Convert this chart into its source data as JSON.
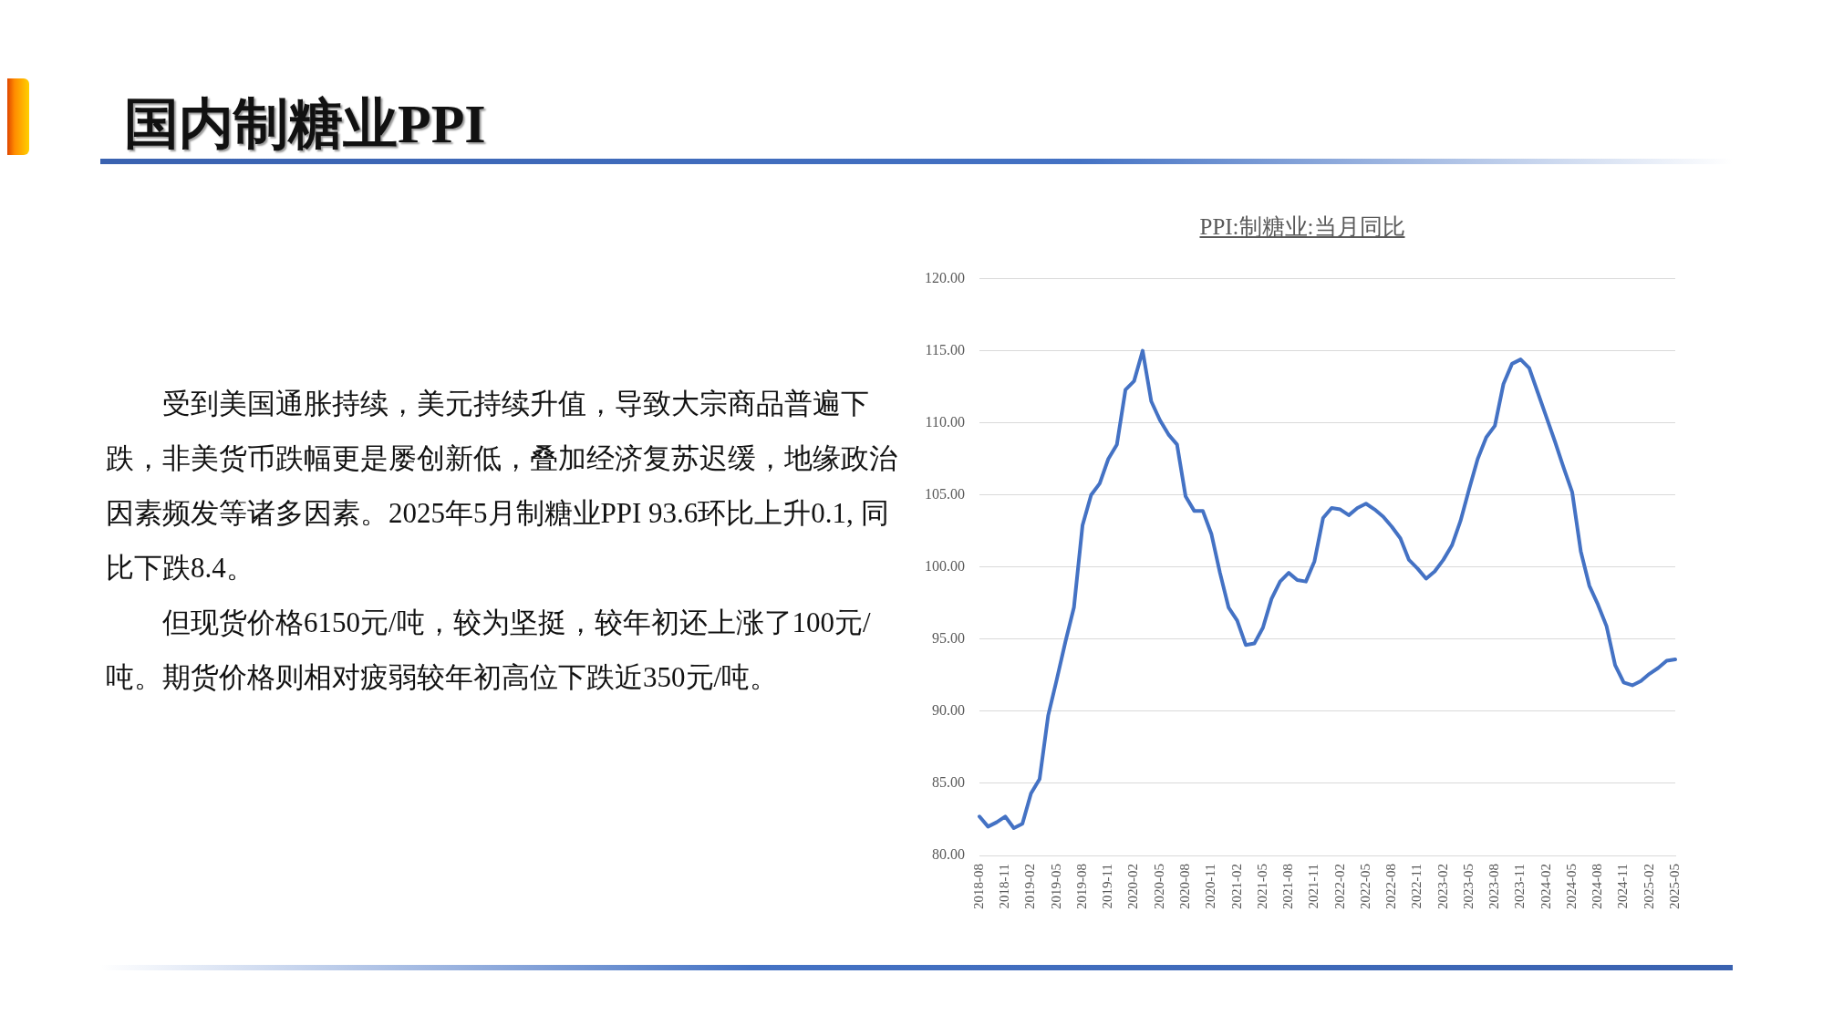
{
  "chart_data": {
    "type": "line",
    "title": "国内制糖业PPI",
    "subtitle": "PPI:制糖业:当月同比",
    "annotations": [
      "受到美国通胀持续，美元持续升值，导致大宗商品普遍下跌，非美货币跌幅更是屡创新低，叠加经济复苏迟缓，地缘政治因素频发等诸多因素。2025年5月制糖业PPI 93.6环比上升0.1, 同比下跌8.4。",
      "但现货价格6150元/吨，较为坚挺，较年初还上涨了100元/吨。期货价格则相对疲弱较年初高位下跌近350元/吨。"
    ],
    "categories": [
      "2018-08",
      null,
      null,
      "2018-11",
      null,
      null,
      "2019-02",
      null,
      null,
      "2019-05",
      null,
      null,
      "2019-08",
      null,
      null,
      "2019-11",
      null,
      null,
      "2020-02",
      null,
      null,
      "2020-05",
      null,
      null,
      "2020-08",
      null,
      null,
      "2020-11",
      null,
      null,
      "2021-02",
      null,
      null,
      "2021-05",
      null,
      null,
      "2021-08",
      null,
      null,
      "2021-11",
      null,
      null,
      "2022-02",
      null,
      null,
      "2022-05",
      null,
      null,
      "2022-08",
      null,
      null,
      "2022-11",
      null,
      null,
      "2023-02",
      null,
      null,
      "2023-05",
      null,
      null,
      "2023-08",
      null,
      null,
      "2023-11",
      null,
      null,
      "2024-02",
      null,
      null,
      "2024-05",
      null,
      null,
      "2024-08",
      null,
      null,
      "2024-11",
      null,
      null,
      "2025-02",
      null,
      null,
      "2025-05"
    ],
    "series": [
      {
        "color": "#4472c4",
        "values": [
          82.7,
          82.0,
          82.3,
          82.7,
          81.9,
          82.2,
          84.3,
          85.3,
          89.7,
          92.2,
          94.8,
          97.2,
          102.9,
          105.0,
          105.8,
          107.5,
          108.5,
          112.3,
          112.9,
          115.0,
          111.5,
          110.2,
          109.2,
          108.5,
          104.9,
          103.9,
          103.9,
          102.3,
          99.6,
          97.2,
          96.3,
          94.6,
          94.7,
          95.8,
          97.8,
          99.0,
          99.6,
          99.1,
          99.0,
          100.4,
          103.4,
          104.1,
          104.0,
          103.6,
          104.1,
          104.4,
          104.0,
          103.5,
          102.8,
          102.0,
          100.5,
          99.9,
          99.2,
          99.7,
          100.5,
          101.5,
          103.2,
          105.4,
          107.5,
          109.0,
          109.8,
          112.7,
          114.1,
          114.4,
          113.8,
          112.1,
          110.4,
          108.7,
          106.9,
          105.2,
          101.1,
          98.7,
          97.4,
          95.9,
          93.2,
          92.0,
          91.8,
          92.1,
          92.6,
          93.0,
          93.5,
          93.6
        ]
      }
    ],
    "ylim": [
      80,
      120
    ],
    "yticks": [
      {
        "value": 80,
        "label": "80.00"
      },
      {
        "value": 85,
        "label": "85.00"
      },
      {
        "value": 90,
        "label": "90.00"
      },
      {
        "value": 95,
        "label": "95.00"
      },
      {
        "value": 100,
        "label": "100.00"
      },
      {
        "value": 105,
        "label": "105.00"
      },
      {
        "value": 110,
        "label": "110.00"
      },
      {
        "value": 115,
        "label": "115.00"
      },
      {
        "value": 120,
        "label": "120.00"
      }
    ],
    "grid": "y",
    "legend": false,
    "marker": "none",
    "line_style": "solid"
  }
}
